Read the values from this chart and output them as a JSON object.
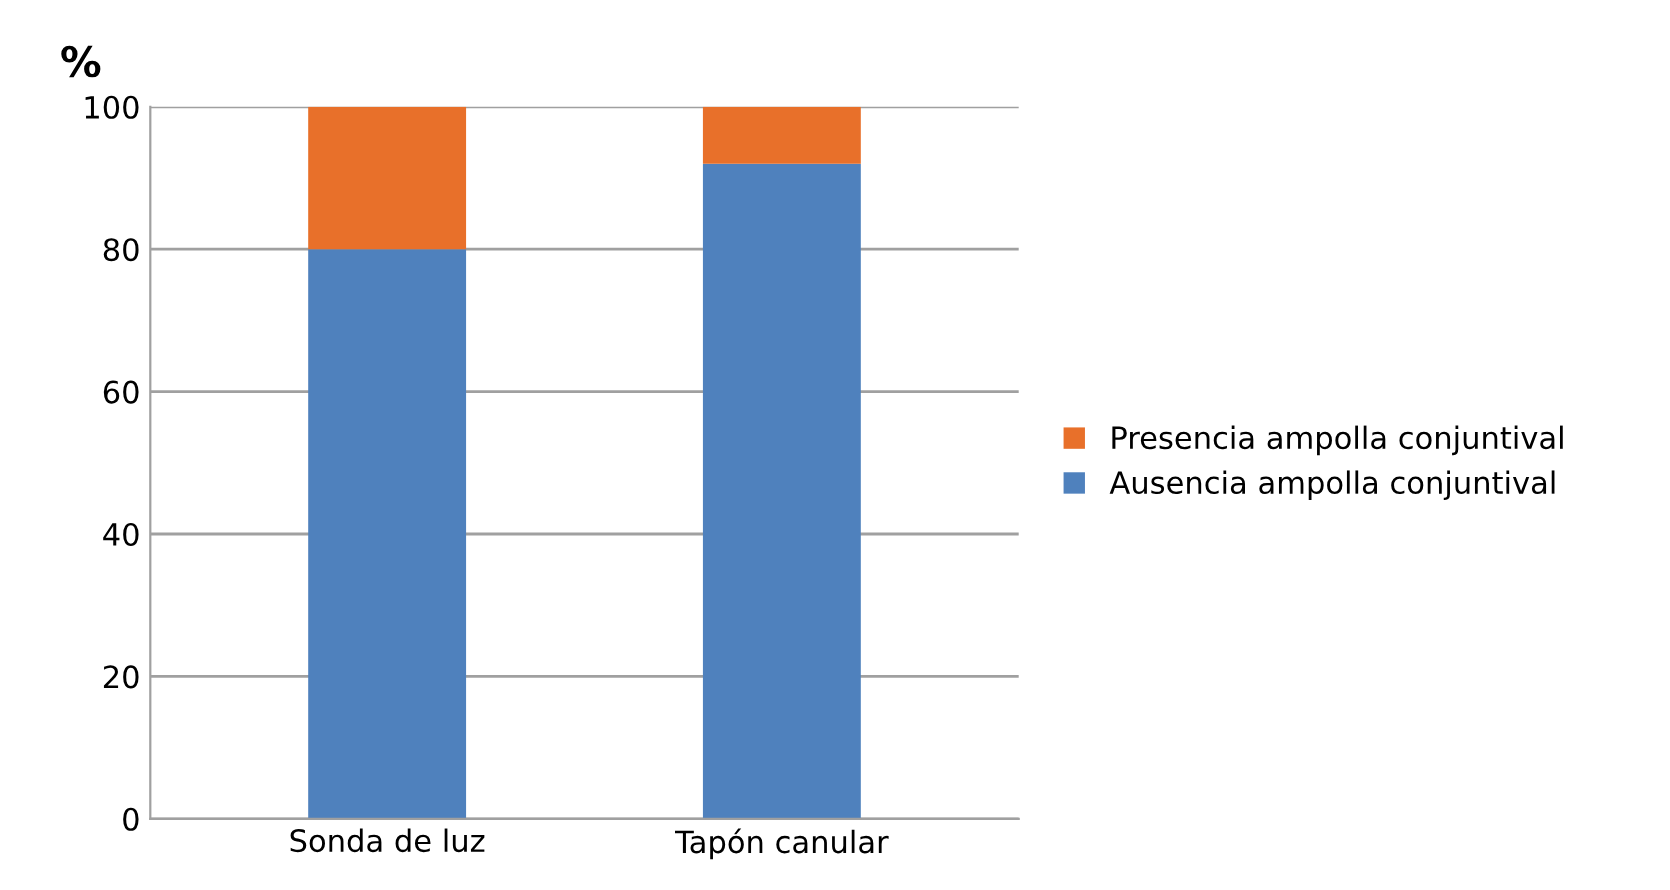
{
  "chart_data": {
    "type": "bar",
    "stacked": true,
    "ylabel": "%",
    "categories": [
      "Sonda de luz",
      "Tapón canular"
    ],
    "series": [
      {
        "name": "Ausencia ampolla conjuntival",
        "color": "#4f81bd",
        "values": [
          80,
          92
        ]
      },
      {
        "name": "Presencia ampolla conjuntival",
        "color": "#e8702a",
        "values": [
          20,
          8
        ]
      }
    ],
    "ylim": [
      0,
      100
    ],
    "yticks": [
      0,
      20,
      40,
      60,
      80,
      100
    ],
    "grid": "y",
    "legend": "right"
  }
}
